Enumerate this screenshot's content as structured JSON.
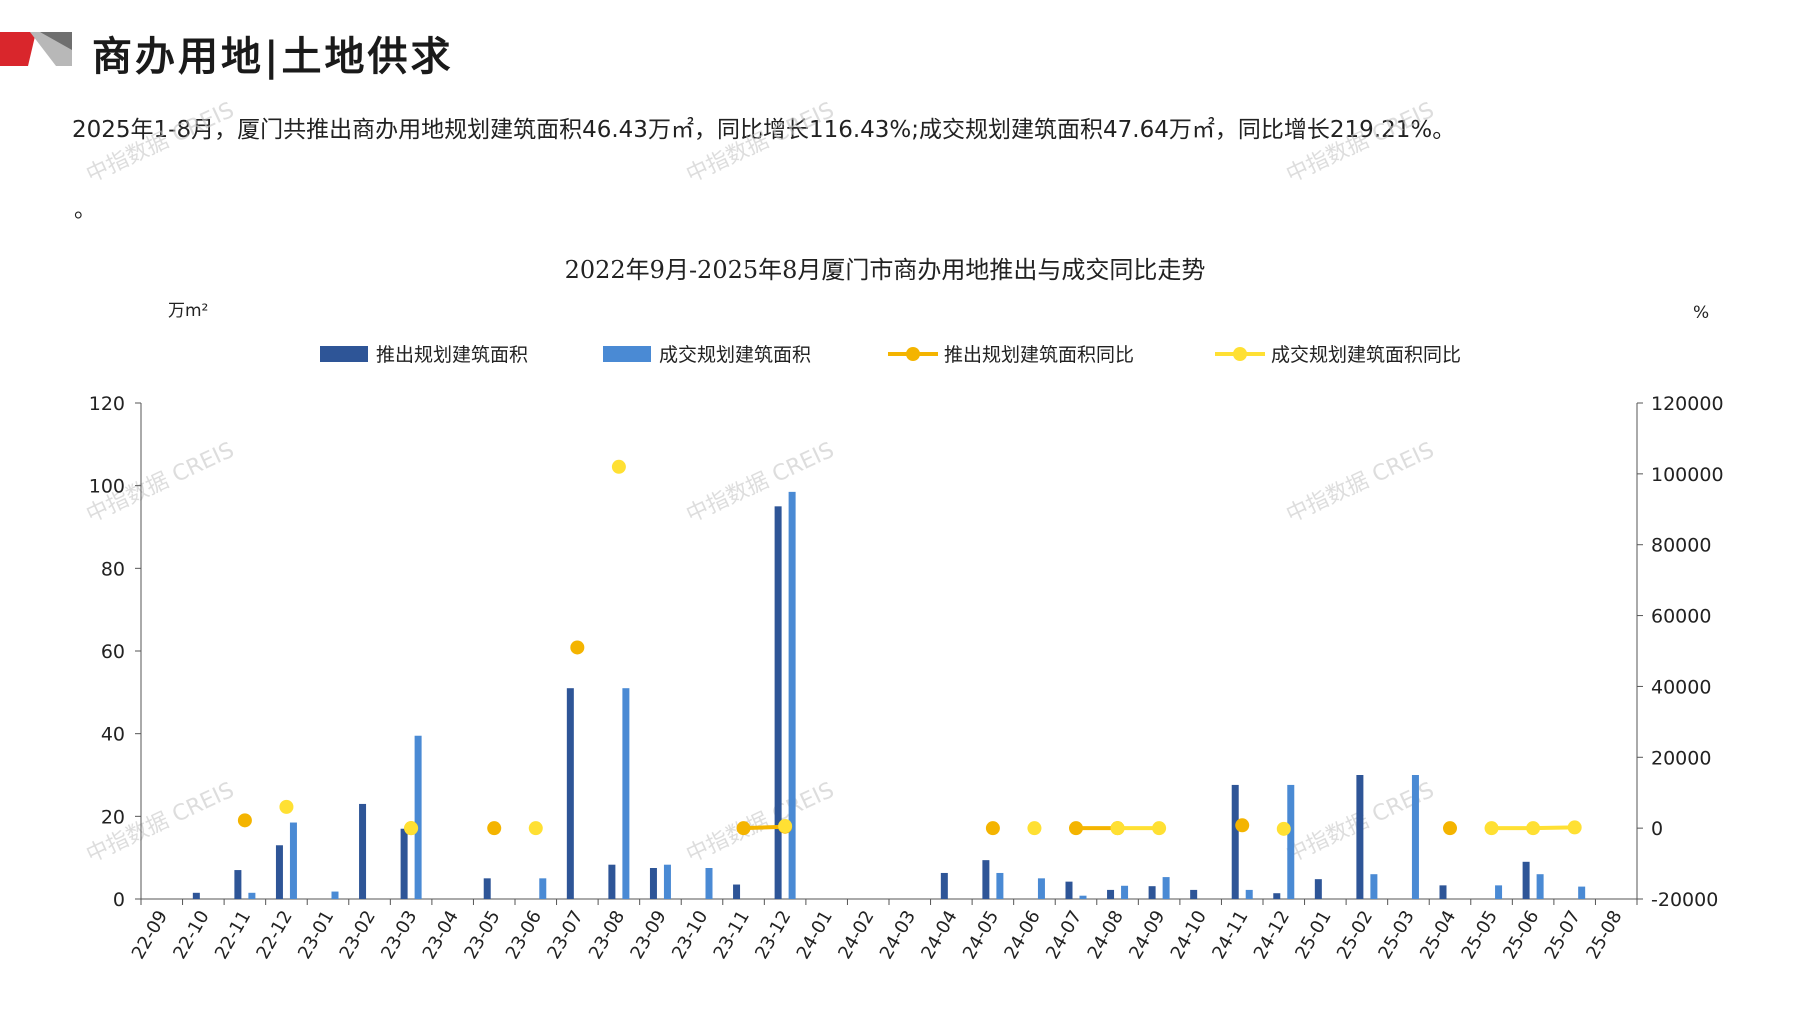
{
  "header": {
    "title": "商办用地|土地供求",
    "colors": {
      "accent_red": "#d9262c",
      "accent_gray": "#9a9a9a"
    }
  },
  "summary_text": "2025年1-8月，厦门共推出商办用地规划建筑面积46.43万㎡，同比增长116.43%;成交规划建筑面积47.64万㎡，同比增长219.21%。",
  "bullet_text": "。",
  "watermarks": [
    "中指数据 CREIS",
    "中指数据 CREIS",
    "中指数据 CREIS",
    "中指数据 CREIS",
    "中指数据 CREIS",
    "中指数据 CREIS",
    "中指数据 CREIS",
    "中指数据 CREIS",
    "中指数据 CREIS"
  ],
  "chart_data": {
    "type": "bar",
    "title": "2022年9月-2025年8月厦门市商办用地推出与成交同比走势",
    "ylabel": "万m²",
    "y2label": "%",
    "ylim": [
      0,
      120
    ],
    "y2lim": [
      -20000,
      120000
    ],
    "yticks": [
      0,
      20,
      40,
      60,
      80,
      100,
      120
    ],
    "y2ticks": [
      -20000,
      0,
      20000,
      40000,
      60000,
      80000,
      100000,
      120000
    ],
    "legend_position": "top",
    "grid": false,
    "categories": [
      "22-09",
      "22-10",
      "22-11",
      "22-12",
      "23-01",
      "23-02",
      "23-03",
      "23-04",
      "23-05",
      "23-06",
      "23-07",
      "23-08",
      "23-09",
      "23-10",
      "23-11",
      "23-12",
      "24-01",
      "24-02",
      "24-03",
      "24-04",
      "24-05",
      "24-06",
      "24-07",
      "24-08",
      "24-09",
      "24-10",
      "24-11",
      "24-12",
      "25-01",
      "25-02",
      "25-03",
      "25-04",
      "25-05",
      "25-06",
      "25-07",
      "25-08"
    ],
    "series": [
      {
        "name": "推出规划建筑面积",
        "kind": "bar",
        "axis": "left",
        "color": "#2e5597",
        "values": [
          0,
          1.5,
          7,
          13,
          0,
          23,
          17,
          0,
          5,
          0,
          51,
          8.3,
          7.5,
          0,
          3.5,
          95,
          0,
          0,
          0,
          6.3,
          9.4,
          0,
          4.2,
          2.2,
          3.1,
          2.2,
          27.6,
          1.4,
          4.8,
          30,
          0,
          3.3,
          0,
          9,
          0,
          0
        ]
      },
      {
        "name": "成交规划建筑面积",
        "kind": "bar",
        "axis": "left",
        "color": "#4a8ad4",
        "values": [
          0,
          0,
          1.5,
          18.5,
          1.8,
          0,
          39.5,
          0,
          0,
          5,
          0,
          51,
          8.3,
          7.5,
          0,
          98.5,
          0,
          0,
          0,
          0,
          6.3,
          5,
          0.8,
          3.2,
          5.3,
          0,
          2.2,
          27.6,
          0,
          6,
          30,
          0,
          3.3,
          6,
          3,
          0
        ]
      },
      {
        "name": "推出规划建筑面积同比",
        "kind": "line",
        "axis": "right",
        "color": "#f4b400",
        "values": [
          null,
          null,
          2200,
          null,
          null,
          null,
          0,
          null,
          0,
          null,
          51000,
          null,
          null,
          null,
          0,
          400,
          null,
          null,
          null,
          null,
          0,
          null,
          0,
          0,
          null,
          null,
          800,
          null,
          null,
          null,
          null,
          0,
          null,
          null,
          null,
          null
        ]
      },
      {
        "name": "成交规划建筑面积同比",
        "kind": "line",
        "axis": "right",
        "color": "#ffe033",
        "values": [
          null,
          null,
          null,
          6000,
          null,
          null,
          0,
          null,
          null,
          0,
          null,
          102000,
          null,
          null,
          null,
          600,
          null,
          null,
          null,
          null,
          null,
          0,
          null,
          0,
          0,
          null,
          null,
          -200,
          null,
          null,
          null,
          null,
          0,
          0,
          200,
          null
        ]
      }
    ]
  }
}
